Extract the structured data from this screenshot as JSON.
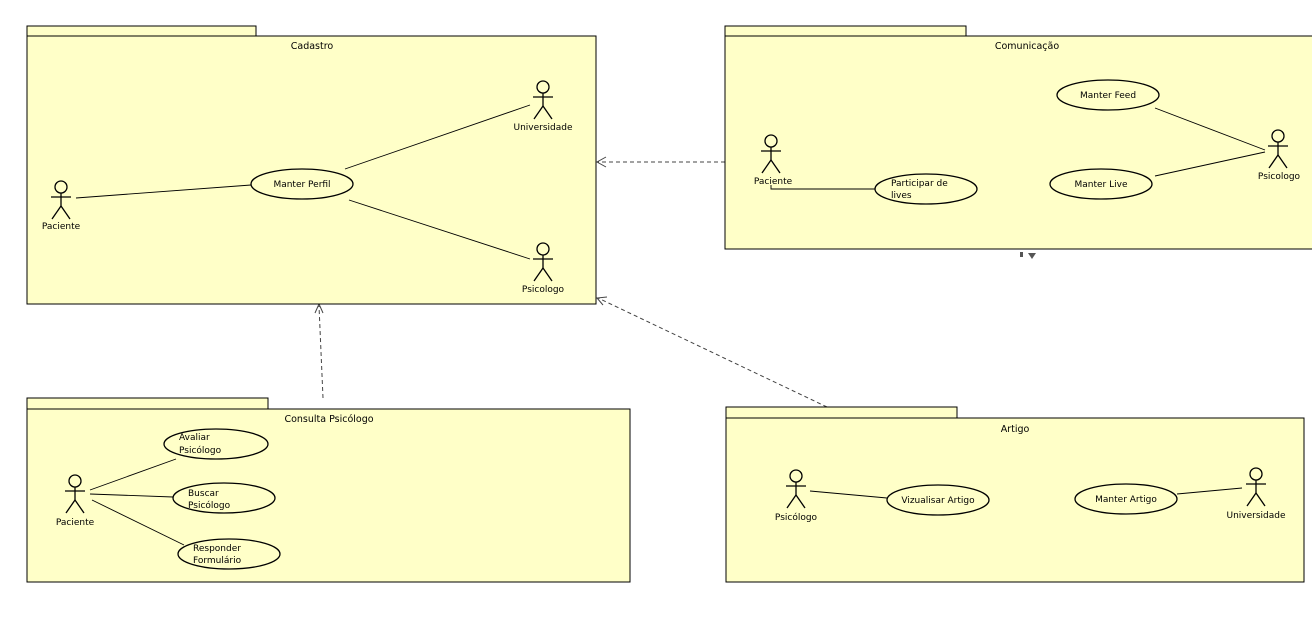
{
  "diagram": {
    "type": "uml-use-case-packages",
    "colors": {
      "package_fill": "#ffffc8",
      "stroke": "#000000",
      "dependency": "#444444"
    },
    "packages": {
      "cadastro": {
        "title": "Cadastro",
        "actors": {
          "paciente": "Paciente",
          "universidade": "Universidade",
          "psicologo": "Psicologo"
        },
        "use_cases": {
          "manter_perfil": [
            "Manter Perfil"
          ]
        }
      },
      "comunicacao": {
        "title": "Comunicação",
        "actors": {
          "paciente": "Paciente",
          "psicologo": "Psicologo"
        },
        "use_cases": {
          "manter_feed": [
            "Manter Feed"
          ],
          "manter_live": [
            "Manter Live"
          ],
          "participar_lives": [
            "Participar de",
            "lives"
          ]
        }
      },
      "consulta": {
        "title": "Consulta Psicólogo",
        "actors": {
          "paciente": "Paciente"
        },
        "use_cases": {
          "avaliar": [
            "Avaliar",
            "Psicólogo"
          ],
          "buscar": [
            "Buscar",
            "Psicólogo"
          ],
          "responder": [
            "Responder",
            "Formulário"
          ]
        }
      },
      "artigo": {
        "title": "Artigo",
        "actors": {
          "psicologo": "Psicólogo",
          "universidade": "Universidade"
        },
        "use_cases": {
          "visualizar": [
            "Vizualisar Artigo"
          ],
          "manter_artigo": [
            "Manter Artigo"
          ]
        }
      }
    },
    "associations": [
      [
        "cadastro.actor.paciente",
        "cadastro.uc.manter_perfil"
      ],
      [
        "cadastro.uc.manter_perfil",
        "cadastro.actor.universidade"
      ],
      [
        "cadastro.uc.manter_perfil",
        "cadastro.actor.psicologo"
      ],
      [
        "comunicacao.uc.manter_feed",
        "comunicacao.actor.psicologo"
      ],
      [
        "comunicacao.uc.manter_live",
        "comunicacao.actor.psicologo"
      ],
      [
        "comunicacao.actor.paciente",
        "comunicacao.uc.participar_lives"
      ],
      [
        "consulta.actor.paciente",
        "consulta.uc.avaliar"
      ],
      [
        "consulta.actor.paciente",
        "consulta.uc.buscar"
      ],
      [
        "consulta.actor.paciente",
        "consulta.uc.responder"
      ],
      [
        "artigo.actor.psicologo",
        "artigo.uc.visualizar"
      ],
      [
        "artigo.uc.manter_artigo",
        "artigo.actor.universidade"
      ]
    ],
    "dependencies": [
      [
        "comunicacao",
        "cadastro"
      ],
      [
        "consulta",
        "cadastro"
      ],
      [
        "artigo",
        "cadastro"
      ]
    ]
  }
}
